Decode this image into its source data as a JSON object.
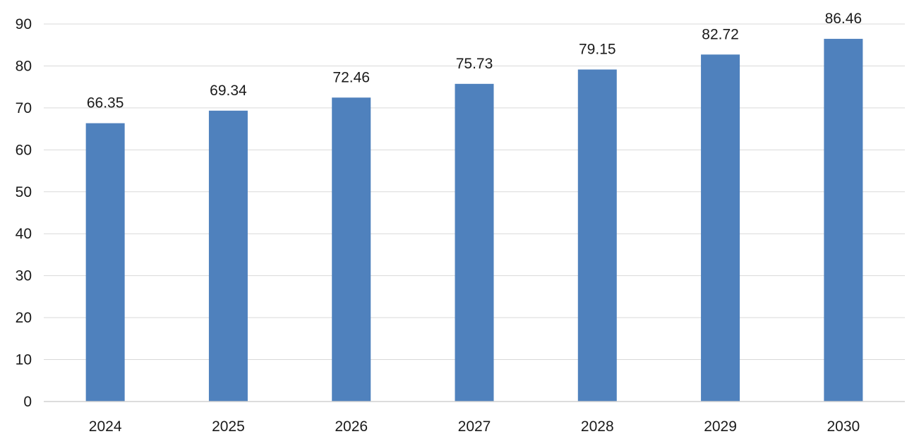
{
  "chart_data": {
    "type": "bar",
    "title": "",
    "xlabel": "",
    "ylabel": "",
    "categories": [
      "2024",
      "2025",
      "2026",
      "2027",
      "2028",
      "2029",
      "2030"
    ],
    "values": [
      66.35,
      69.34,
      72.46,
      75.73,
      79.15,
      82.72,
      86.46
    ],
    "data_labels": [
      "66.35",
      "69.34",
      "72.46",
      "75.73",
      "79.15",
      "82.72",
      "86.46"
    ],
    "ylim": [
      0,
      90
    ],
    "yticks": [
      0,
      10,
      20,
      30,
      40,
      50,
      60,
      70,
      80,
      90
    ],
    "ytick_labels": [
      "0",
      "10",
      "20",
      "30",
      "40",
      "50",
      "60",
      "70",
      "80",
      "90"
    ],
    "grid": true,
    "legend": "none",
    "bar_color": "#4f81bd"
  }
}
